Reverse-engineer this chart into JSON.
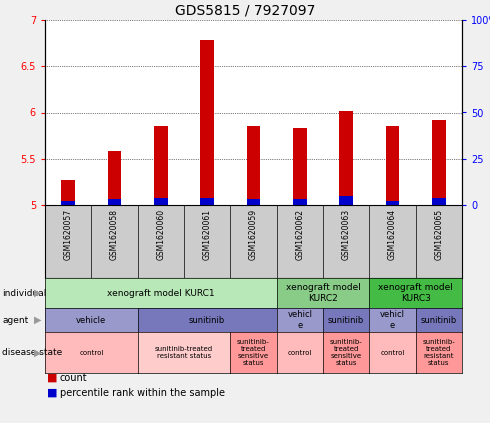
{
  "title": "GDS5815 / 7927097",
  "samples": [
    "GSM1620057",
    "GSM1620058",
    "GSM1620060",
    "GSM1620061",
    "GSM1620059",
    "GSM1620062",
    "GSM1620063",
    "GSM1620064",
    "GSM1620065"
  ],
  "count_values": [
    5.27,
    5.58,
    5.85,
    6.78,
    5.85,
    5.83,
    6.02,
    5.85,
    5.92
  ],
  "percentile_values": [
    2,
    3,
    4,
    4,
    3,
    3,
    5,
    2,
    4
  ],
  "ylim_left": [
    5.0,
    7.0
  ],
  "ylim_right": [
    0,
    100
  ],
  "yticks_left": [
    5.0,
    5.5,
    6.0,
    6.5,
    7.0
  ],
  "ytick_labels_left": [
    "5",
    "5.5",
    "6",
    "6.5",
    "7"
  ],
  "ytick_labels_right": [
    "0",
    "25",
    "50",
    "75",
    "100%"
  ],
  "count_color": "#cc0000",
  "percentile_color": "#0000cc",
  "fig_bg": "#f0f0f0",
  "plot_bg": "#ffffff",
  "sample_bg": "#cccccc",
  "individual_cells": [
    {
      "cols": [
        0,
        4
      ],
      "label": "xenograft model KURC1",
      "color": "#b8e8b8"
    },
    {
      "cols": [
        5,
        6
      ],
      "label": "xenograft model\nKURC2",
      "color": "#88cc88"
    },
    {
      "cols": [
        7,
        8
      ],
      "label": "xenograft model\nKURC3",
      "color": "#44bb44"
    }
  ],
  "agent_cells": [
    {
      "cols": [
        0,
        1
      ],
      "label": "vehicle",
      "color": "#9999cc"
    },
    {
      "cols": [
        2,
        4
      ],
      "label": "sunitinib",
      "color": "#7777bb"
    },
    {
      "cols": [
        5,
        5
      ],
      "label": "vehicl\ne",
      "color": "#9999cc"
    },
    {
      "cols": [
        6,
        6
      ],
      "label": "sunitinib",
      "color": "#7777bb"
    },
    {
      "cols": [
        7,
        7
      ],
      "label": "vehicl\ne",
      "color": "#9999cc"
    },
    {
      "cols": [
        8,
        8
      ],
      "label": "sunitinib",
      "color": "#7777bb"
    }
  ],
  "disease_cells": [
    {
      "cols": [
        0,
        1
      ],
      "label": "control",
      "color": "#ffbbbb"
    },
    {
      "cols": [
        2,
        3
      ],
      "label": "sunitinib-treated\nresistant status",
      "color": "#ffcccc"
    },
    {
      "cols": [
        4,
        4
      ],
      "label": "sunitinib-\ntreated\nsensitive\nstatus",
      "color": "#ff9999"
    },
    {
      "cols": [
        5,
        5
      ],
      "label": "control",
      "color": "#ffbbbb"
    },
    {
      "cols": [
        6,
        6
      ],
      "label": "sunitinib-\ntreated\nsensitive\nstatus",
      "color": "#ff9999"
    },
    {
      "cols": [
        7,
        7
      ],
      "label": "control",
      "color": "#ffbbbb"
    },
    {
      "cols": [
        8,
        8
      ],
      "label": "sunitinib-\ntreated\nresistant\nstatus",
      "color": "#ff9999"
    }
  ],
  "row_labels": [
    "individual",
    "agent",
    "disease state"
  ],
  "row_label_arrow_color": "#aaaaaa",
  "legend_count_label": "count",
  "legend_percentile_label": "percentile rank within the sample"
}
